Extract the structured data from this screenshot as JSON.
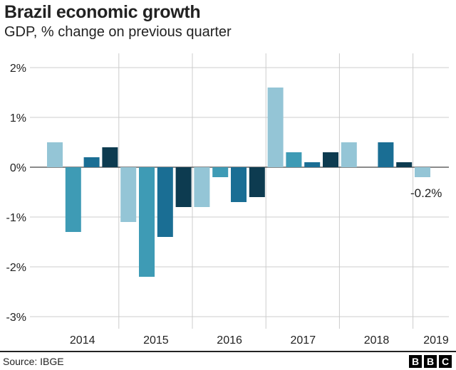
{
  "chart_data": {
    "type": "bar",
    "title": "Brazil economic growth",
    "subtitle": "GDP, % change on previous quarter",
    "xlabel": "",
    "ylabel": "",
    "ylim": [
      -3,
      2
    ],
    "y_ticks": [
      2,
      1,
      0,
      -1,
      -2,
      -3
    ],
    "y_tick_labels": [
      "2%",
      "1%",
      "0%",
      "-1%",
      "-2%",
      "-3%"
    ],
    "years": [
      "2014",
      "2015",
      "2016",
      "2017",
      "2018",
      "2019"
    ],
    "quarters": [
      {
        "year": "2014",
        "q": 1,
        "value": 0.5
      },
      {
        "year": "2014",
        "q": 2,
        "value": -1.3
      },
      {
        "year": "2014",
        "q": 3,
        "value": 0.2
      },
      {
        "year": "2014",
        "q": 4,
        "value": 0.4
      },
      {
        "year": "2015",
        "q": 1,
        "value": -1.1
      },
      {
        "year": "2015",
        "q": 2,
        "value": -2.2
      },
      {
        "year": "2015",
        "q": 3,
        "value": -1.4
      },
      {
        "year": "2015",
        "q": 4,
        "value": -0.8
      },
      {
        "year": "2016",
        "q": 1,
        "value": -0.8
      },
      {
        "year": "2016",
        "q": 2,
        "value": -0.2
      },
      {
        "year": "2016",
        "q": 3,
        "value": -0.7
      },
      {
        "year": "2016",
        "q": 4,
        "value": -0.6
      },
      {
        "year": "2017",
        "q": 1,
        "value": 1.6
      },
      {
        "year": "2017",
        "q": 2,
        "value": 0.3
      },
      {
        "year": "2017",
        "q": 3,
        "value": 0.1
      },
      {
        "year": "2017",
        "q": 4,
        "value": 0.3
      },
      {
        "year": "2018",
        "q": 1,
        "value": 0.5
      },
      {
        "year": "2018",
        "q": 2,
        "value": 0.0
      },
      {
        "year": "2018",
        "q": 3,
        "value": 0.5
      },
      {
        "year": "2018",
        "q": 4,
        "value": 0.1
      },
      {
        "year": "2019",
        "q": 1,
        "value": -0.2
      }
    ],
    "annotation": {
      "label": "-0.2%",
      "index": 20
    },
    "quarter_colors": [
      "#94c5d6",
      "#3e9bb5",
      "#1a6e94",
      "#0d3b50"
    ],
    "grid": true,
    "source": "Source: IBGE"
  },
  "footer": {
    "source": "Source: IBGE",
    "logo_letters": [
      "B",
      "B",
      "C"
    ]
  }
}
